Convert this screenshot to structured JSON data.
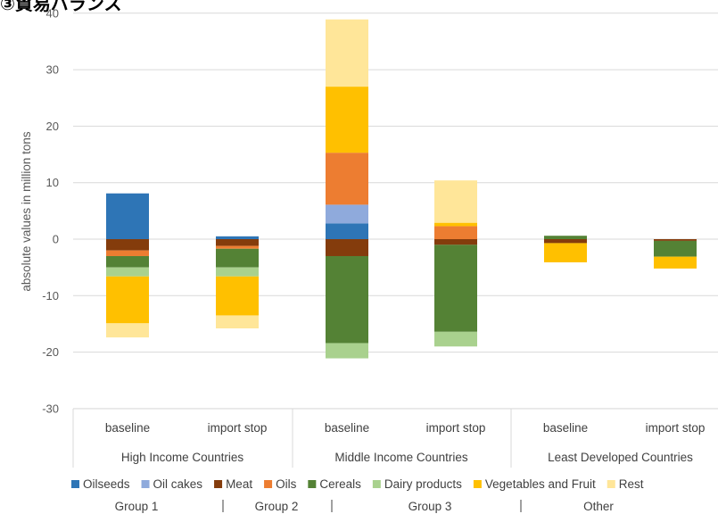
{
  "title": "③貿易バランス",
  "chart_data": {
    "type": "bar",
    "stacked": true,
    "ylabel": "absolute values in million tons",
    "ylim": [
      -30,
      40
    ],
    "yticks": [
      -30,
      -20,
      -10,
      0,
      10,
      20,
      30,
      40
    ],
    "grid": true,
    "legend_position": "bottom",
    "categories": [
      "baseline",
      "import stop",
      "baseline",
      "import stop",
      "baseline",
      "import stop"
    ],
    "groups": [
      {
        "label": "High Income Countries",
        "span": [
          0,
          1
        ]
      },
      {
        "label": "Middle Income Countries",
        "span": [
          2,
          3
        ]
      },
      {
        "label": "Least Developed Countries",
        "span": [
          4,
          5
        ]
      }
    ],
    "series": [
      {
        "name": "Oilseeds",
        "color": "#2e75b6",
        "values": [
          8.1,
          0.5,
          2.8,
          0,
          0,
          0
        ]
      },
      {
        "name": "Oil cakes",
        "color": "#8faadc",
        "values": [
          0,
          0,
          3.3,
          0,
          0,
          0
        ]
      },
      {
        "name": "Meat",
        "color": "#843c0c",
        "values": [
          -2.0,
          -1.2,
          -3.0,
          -1.0,
          -0.7,
          -0.3
        ]
      },
      {
        "name": "Oils",
        "color": "#ed7d31",
        "values": [
          -1.0,
          -0.5,
          9.2,
          2.3,
          0,
          0
        ]
      },
      {
        "name": "Cereals",
        "color": "#548235",
        "values": [
          -2.0,
          -3.3,
          -15.4,
          -15.4,
          0.6,
          -2.8
        ]
      },
      {
        "name": "Dairy products",
        "color": "#a9d18e",
        "values": [
          -1.6,
          -1.6,
          -2.7,
          -2.6,
          0,
          0
        ]
      },
      {
        "name": "Vegetables and Fruit",
        "color": "#ffc000",
        "values": [
          -8.3,
          -6.9,
          11.7,
          0.6,
          -3.4,
          -2.1
        ]
      },
      {
        "name": "Rest",
        "color": "#ffe699",
        "values": [
          -2.5,
          -2.3,
          11.9,
          7.5,
          0,
          0
        ]
      }
    ]
  },
  "bottom_labels": [
    "Group 1",
    "Group 2",
    "Group 3",
    "Other"
  ]
}
